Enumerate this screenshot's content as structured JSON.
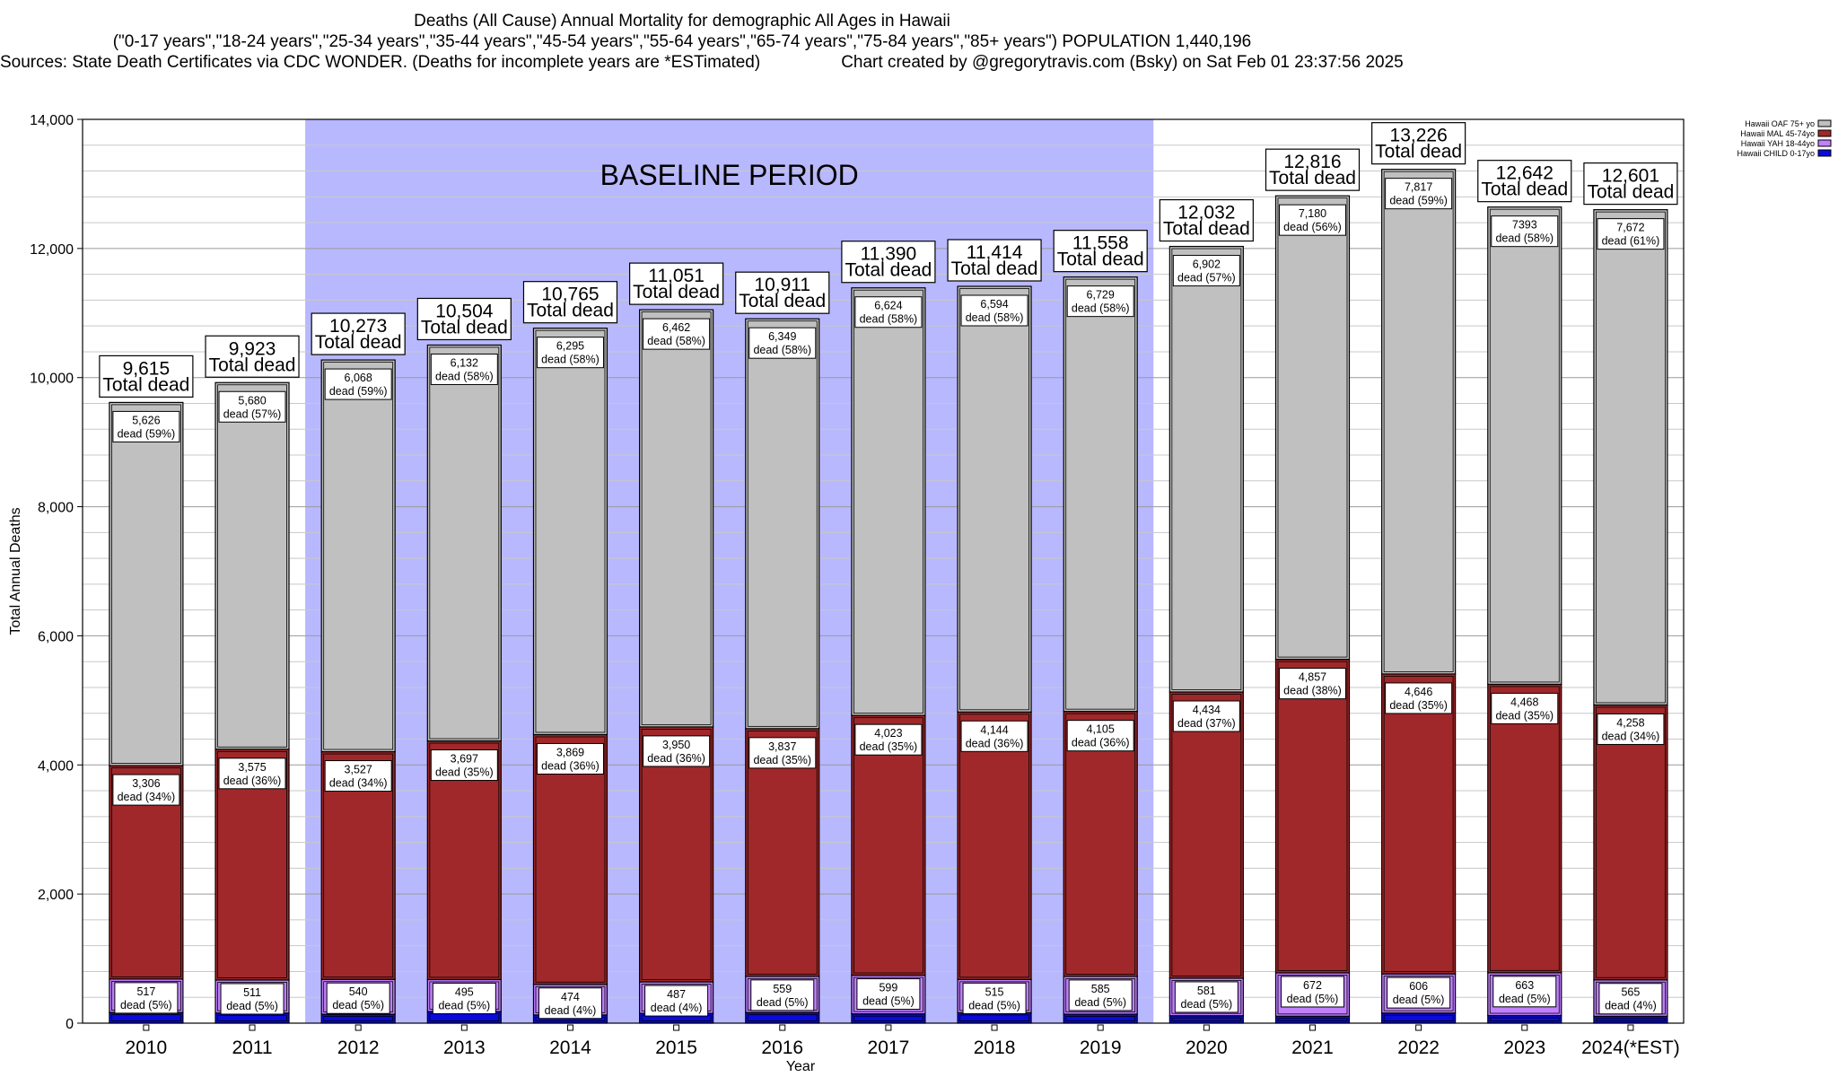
{
  "chart_data": {
    "type": "bar",
    "stacked": true,
    "title": "Deaths (All Cause) Annual Mortality for demographic All Ages in Hawaii",
    "subtitle": "(\"0-17 years\",\"18-24 years\",\"25-34 years\",\"35-44 years\",\"45-54 years\",\"55-64 years\",\"65-74 years\",\"75-84 years\",\"85+ years\") POPULATION 1,440,196",
    "sources": "Sources: State Death Certificates via CDC WONDER. (Deaths for incomplete years are *ESTimated)",
    "credit": "Chart created by @gregorytravis.com (Bsky) on Sat Feb 01 23:37:56 2025",
    "xlabel": "Year",
    "ylabel": "Total Annual Deaths",
    "ylim": [
      0,
      14000
    ],
    "yticks": [
      0,
      2000,
      4000,
      6000,
      8000,
      10000,
      12000,
      14000
    ],
    "ytick_labels": [
      "0",
      "2,000",
      "4,000",
      "6,000",
      "8,000",
      "10,000",
      "12,000",
      "14,000"
    ],
    "categories": [
      "2010",
      "2011",
      "2012",
      "2013",
      "2014",
      "2015",
      "2016",
      "2017",
      "2018",
      "2019",
      "2020",
      "2021",
      "2022",
      "2023",
      "2024(*EST)"
    ],
    "baseline_label": "BASELINE PERIOD",
    "baseline_range": [
      "2012",
      "2019"
    ],
    "total_suffix": "Total dead",
    "dead_word": "dead",
    "totals": [
      9615,
      9923,
      10273,
      10504,
      10765,
      11051,
      10911,
      11390,
      11414,
      11558,
      12032,
      12816,
      13226,
      12642,
      12601
    ],
    "total_labels": [
      "9,615",
      "9,923",
      "10,273",
      "10,504",
      "10,765",
      "11,051",
      "10,911",
      "11,390",
      "11,414",
      "11,558",
      "12,032",
      "12,816",
      "13,226",
      "12,642",
      "12,601"
    ],
    "series": [
      {
        "name": "Hawaii CHILD 0-17yo",
        "color": "#0a0adc",
        "values": [
          166,
          157,
          138,
          180,
          127,
          152,
          166,
          144,
          161,
          139,
          115,
          107,
          157,
          118,
          106
        ]
      },
      {
        "name": "Hawaii YAH 18-44yo",
        "color": "#c080ff",
        "values": [
          517,
          511,
          540,
          495,
          474,
          487,
          559,
          599,
          515,
          585,
          581,
          672,
          606,
          663,
          565
        ],
        "labels": [
          "517",
          "511",
          "540",
          "495",
          "474",
          "487",
          "559",
          "599",
          "515",
          "585",
          "581",
          "672",
          "606",
          "663",
          "565"
        ],
        "pct": [
          "5%",
          "5%",
          "5%",
          "5%",
          "4%",
          "4%",
          "5%",
          "5%",
          "5%",
          "5%",
          "5%",
          "5%",
          "5%",
          "5%",
          "4%"
        ]
      },
      {
        "name": "Hawaii MAL 45-74yo",
        "color": "#a0282a",
        "values": [
          3306,
          3575,
          3527,
          3697,
          3869,
          3950,
          3837,
          4023,
          4144,
          4105,
          4434,
          4857,
          4646,
          4468,
          4258
        ],
        "labels": [
          "3,306",
          "3,575",
          "3,527",
          "3,697",
          "3,869",
          "3,950",
          "3,837",
          "4,023",
          "4,144",
          "4,105",
          "4,434",
          "4,857",
          "4,646",
          "4,468",
          "4,258"
        ],
        "pct": [
          "34%",
          "36%",
          "34%",
          "35%",
          "36%",
          "36%",
          "35%",
          "35%",
          "36%",
          "36%",
          "37%",
          "38%",
          "35%",
          "35%",
          "34%"
        ]
      },
      {
        "name": "Hawaii OAF 75+ yo",
        "color": "#c0c0c0",
        "values": [
          5626,
          5680,
          6068,
          6132,
          6295,
          6462,
          6349,
          6624,
          6594,
          6729,
          6902,
          7180,
          7817,
          7393,
          7672
        ],
        "labels": [
          "5,626",
          "5,680",
          "6,068",
          "6,132",
          "6,295",
          "6,462",
          "6,349",
          "6,624",
          "6,594",
          "6,729",
          "6,902",
          "7,180",
          "7,817",
          "7393",
          "7,672"
        ],
        "pct": [
          "59%",
          "57%",
          "59%",
          "58%",
          "58%",
          "58%",
          "58%",
          "58%",
          "58%",
          "58%",
          "57%",
          "56%",
          "59%",
          "58%",
          "61%"
        ]
      }
    ],
    "legend_order": [
      "Hawaii OAF 75+ yo",
      "Hawaii MAL 45-74yo",
      "Hawaii YAH 18-44yo",
      "Hawaii CHILD 0-17yo"
    ],
    "legend_position": "top-right",
    "grid": true
  }
}
